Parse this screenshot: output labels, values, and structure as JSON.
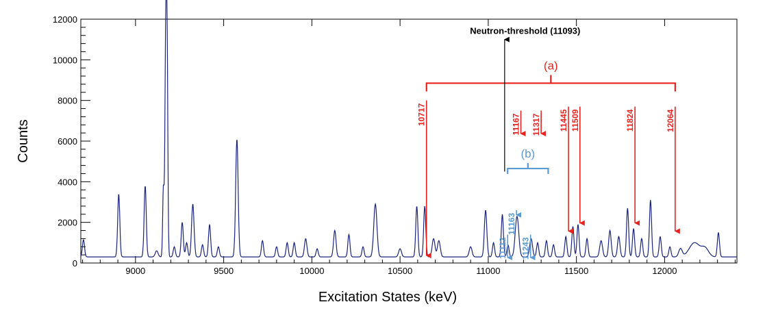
{
  "chart_data": {
    "type": "line",
    "title": "",
    "xlabel": "Excitation States (keV)",
    "ylabel": "Counts",
    "xlim": [
      8690,
      12410
    ],
    "ylim": [
      0,
      12000
    ],
    "x_ticks": [
      9000,
      9500,
      10000,
      10500,
      11000,
      11500,
      12000
    ],
    "y_ticks": [
      0,
      2000,
      4000,
      6000,
      8000,
      10000,
      12000
    ],
    "series": [
      {
        "color": "#1a237e",
        "baseline": 300,
        "peaks": [
          [
            8705,
            850,
            6
          ],
          [
            8905,
            3100,
            6
          ],
          [
            9055,
            3500,
            6
          ],
          [
            9120,
            300,
            8
          ],
          [
            9158,
            3300,
            4
          ],
          [
            9172,
            11400,
            5
          ],
          [
            9180,
            8000,
            4
          ],
          [
            9220,
            500,
            6
          ],
          [
            9265,
            1700,
            6
          ],
          [
            9290,
            700,
            6
          ],
          [
            9325,
            2600,
            7
          ],
          [
            9380,
            600,
            6
          ],
          [
            9420,
            1600,
            6
          ],
          [
            9470,
            500,
            6
          ],
          [
            9575,
            5800,
            7
          ],
          [
            9720,
            800,
            6
          ],
          [
            9800,
            500,
            6
          ],
          [
            9860,
            700,
            6
          ],
          [
            9900,
            700,
            6
          ],
          [
            9965,
            900,
            7
          ],
          [
            10030,
            400,
            6
          ],
          [
            10130,
            1300,
            7
          ],
          [
            10210,
            1100,
            6
          ],
          [
            10290,
            500,
            6
          ],
          [
            10360,
            2600,
            9
          ],
          [
            10500,
            400,
            8
          ],
          [
            10595,
            2500,
            6
          ],
          [
            10640,
            2500,
            6
          ],
          [
            10690,
            900,
            8
          ],
          [
            10720,
            800,
            8
          ],
          [
            10900,
            500,
            8
          ],
          [
            10985,
            2300,
            7
          ],
          [
            11030,
            700,
            6
          ],
          [
            11080,
            2100,
            6
          ],
          [
            11112,
            600,
            6
          ],
          [
            11163,
            2000,
            10
          ],
          [
            11243,
            900,
            8
          ],
          [
            11280,
            700,
            6
          ],
          [
            11330,
            800,
            6
          ],
          [
            11370,
            600,
            6
          ],
          [
            11440,
            1000,
            6
          ],
          [
            11480,
            1500,
            6
          ],
          [
            11509,
            1600,
            6
          ],
          [
            11560,
            900,
            6
          ],
          [
            11640,
            800,
            8
          ],
          [
            11690,
            1300,
            7
          ],
          [
            11740,
            1000,
            7
          ],
          [
            11790,
            2400,
            6
          ],
          [
            11824,
            1400,
            6
          ],
          [
            11870,
            900,
            6
          ],
          [
            11920,
            2800,
            6
          ],
          [
            11975,
            1000,
            6
          ],
          [
            12030,
            500,
            6
          ],
          [
            12090,
            400,
            10
          ],
          [
            12170,
            700,
            30
          ],
          [
            12230,
            400,
            20
          ],
          [
            12305,
            1200,
            6
          ]
        ]
      }
    ],
    "group_a": {
      "label": "(a)",
      "color": "#e8231f",
      "bracket": [
        10650,
        12060
      ],
      "states": [
        {
          "label": "10717",
          "x": 10650,
          "y": 300,
          "arrow_top": 8000
        },
        {
          "label": "11167",
          "x": 11185,
          "y": 6300,
          "arrow_top": 7500
        },
        {
          "label": "11317",
          "x": 11300,
          "y": 6300,
          "arrow_top": 7500
        },
        {
          "label": "11445",
          "x": 11455,
          "y": 1500,
          "arrow_top": 7700
        },
        {
          "label": "11509",
          "x": 11520,
          "y": 1900,
          "arrow_top": 7700
        },
        {
          "label": "11824",
          "x": 11832,
          "y": 1900,
          "arrow_top": 7700
        },
        {
          "label": "12064",
          "x": 12060,
          "y": 1500,
          "arrow_top": 7700
        }
      ]
    },
    "group_b": {
      "label": "(b)",
      "color": "#5b9bd5",
      "bracket": [
        11110,
        11340
      ],
      "states": [
        {
          "label": "11112",
          "x": 11110,
          "y": 200,
          "arrow_top": 1400
        },
        {
          "label": "11163",
          "x": 11160,
          "y": 2300,
          "arrow_top": 2600
        },
        {
          "label": "11243",
          "x": 11240,
          "y": 200,
          "arrow_top": 1400
        }
      ]
    },
    "threshold": {
      "label": "Neutron-threshold (11093)",
      "x": 11093,
      "y_from": 4500,
      "y_to": 11000,
      "color": "#000000"
    }
  }
}
